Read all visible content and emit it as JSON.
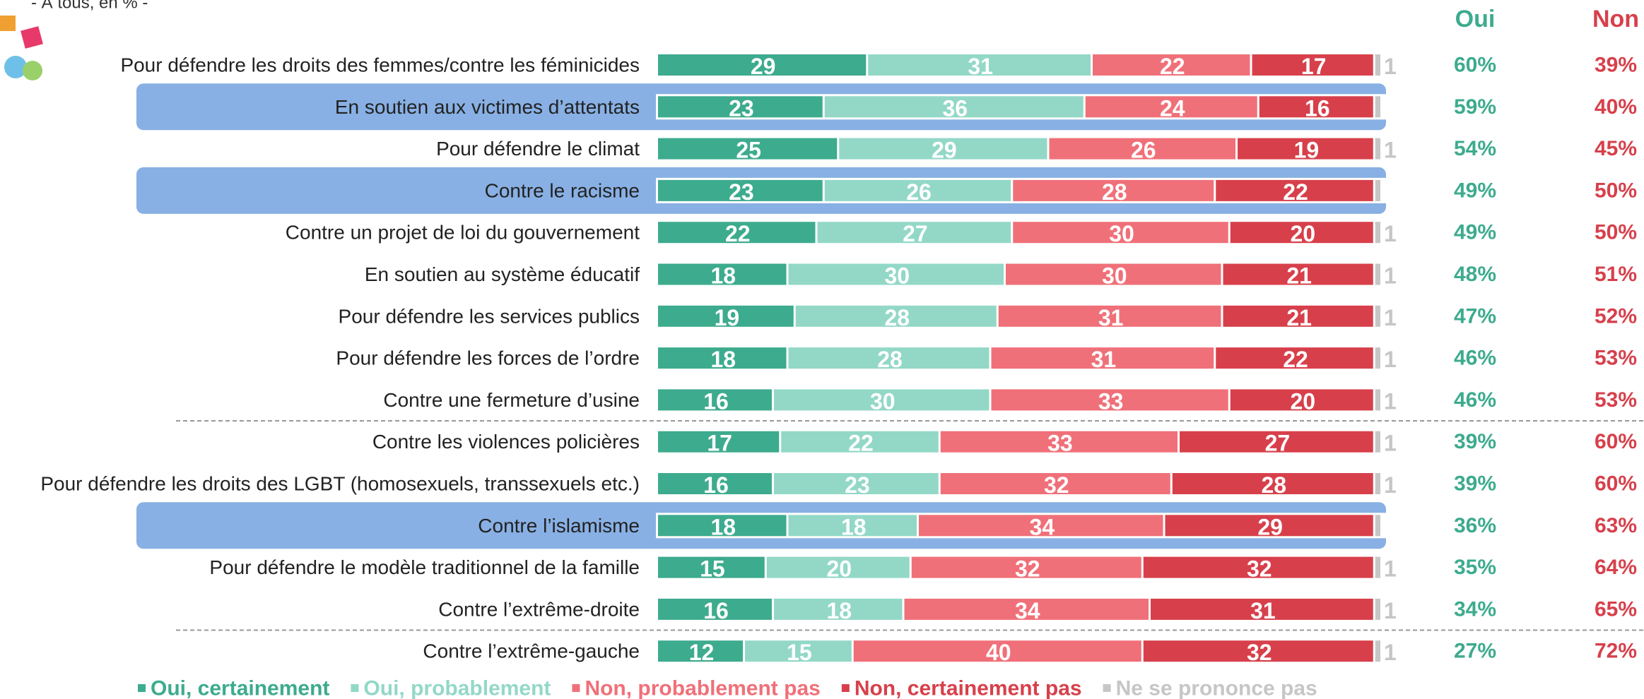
{
  "chart_data": {
    "type": "stacked-bar",
    "subtitle": "- À tous, en % -",
    "categories": [
      "Pour défendre les droits des femmes/contre les féminicides",
      "En soutien aux victimes d’attentats",
      "Pour défendre le climat",
      "Contre le racisme",
      "Contre un projet de loi du gouvernement",
      "En soutien au système éducatif",
      "Pour défendre les services publics",
      "Pour défendre les forces de l’ordre",
      "Contre une fermeture d’usine",
      "Contre les violences policières",
      "Pour défendre les droits des LGBT (homosexuels, transsexuels etc.)",
      "Contre l’islamisme",
      "Pour défendre le modèle traditionnel de la famille",
      "Contre l’extrême-droite",
      "Contre l’extrême-gauche"
    ],
    "series": [
      {
        "name": "Oui, certainement",
        "color": "#3dab8e",
        "values": [
          29,
          23,
          25,
          23,
          22,
          18,
          19,
          18,
          16,
          17,
          16,
          18,
          15,
          16,
          12
        ]
      },
      {
        "name": "Oui, probablement",
        "color": "#93d8c7",
        "values": [
          31,
          36,
          29,
          26,
          27,
          30,
          28,
          28,
          30,
          22,
          23,
          18,
          20,
          18,
          15
        ]
      },
      {
        "name": "Non, probablement pas",
        "color": "#f07079",
        "values": [
          22,
          24,
          26,
          28,
          30,
          30,
          31,
          31,
          33,
          33,
          32,
          34,
          32,
          34,
          40
        ]
      },
      {
        "name": "Non, certainement pas",
        "color": "#d7404b",
        "values": [
          17,
          16,
          19,
          22,
          20,
          21,
          21,
          22,
          20,
          27,
          28,
          29,
          32,
          31,
          32
        ]
      },
      {
        "name": "Ne se prononce pas",
        "color": "#c6c6c6",
        "values": [
          1,
          1,
          1,
          1,
          1,
          1,
          1,
          1,
          1,
          1,
          1,
          1,
          1,
          1,
          1
        ]
      }
    ],
    "totals": [
      {
        "name": "Oui",
        "color": "#3dab8e",
        "values": [
          60,
          59,
          54,
          49,
          49,
          48,
          47,
          46,
          46,
          39,
          39,
          36,
          35,
          34,
          27
        ],
        "value_labels": [
          "60%",
          "59%",
          "54%",
          "49%",
          "49%",
          "48%",
          "47%",
          "46%",
          "46%",
          "39%",
          "39%",
          "36%",
          "35%",
          "34%",
          "27%"
        ]
      },
      {
        "name": "Non",
        "color": "#d7404b",
        "values": [
          39,
          40,
          45,
          50,
          50,
          51,
          52,
          53,
          53,
          60,
          60,
          63,
          64,
          65,
          72
        ],
        "value_labels": [
          "39%",
          "40%",
          "45%",
          "50%",
          "50%",
          "51%",
          "52%",
          "53%",
          "53%",
          "60%",
          "60%",
          "63%",
          "64%",
          "65%",
          "72%"
        ]
      }
    ],
    "xlim": [
      0,
      100
    ],
    "highlighted_rows": [
      1,
      3,
      11
    ],
    "highlight_color": "#88b0e4",
    "separators_after": [
      8,
      13
    ]
  }
}
